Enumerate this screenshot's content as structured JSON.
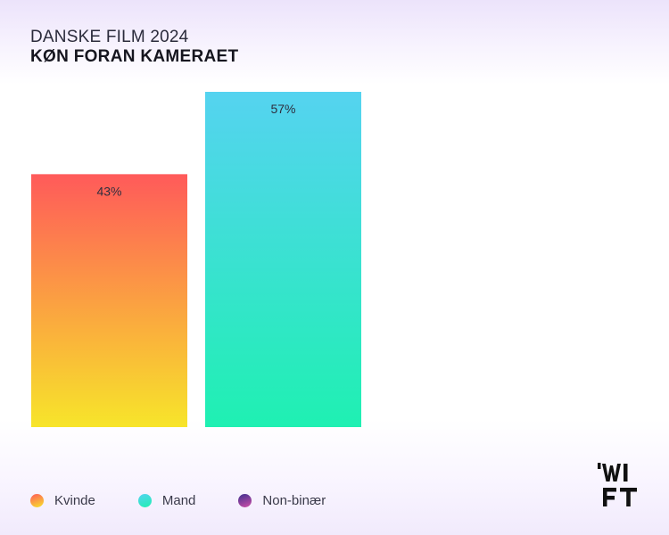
{
  "header": {
    "title": "DANSKE FILM 2024",
    "subtitle": "KØN FORAN KAMERAET"
  },
  "chart_data": {
    "type": "bar",
    "categories": [
      "Kvinde",
      "Mand"
    ],
    "values": [
      43,
      57
    ],
    "data_labels": [
      "43%",
      "57%"
    ],
    "ylim": [
      0,
      57
    ],
    "grid": false,
    "legend_placement": "bottom-left",
    "legend": [
      {
        "name": "Kvinde",
        "colors": [
          "#ff5a5a",
          "#f7e52a"
        ]
      },
      {
        "name": "Mand",
        "colors": [
          "#55d3f0",
          "#1ff0b2"
        ]
      },
      {
        "name": "Non-binær",
        "colors": [
          "#3e2f8f",
          "#d04fa8"
        ]
      }
    ],
    "bar_gradients": [
      [
        "#ff5a5a",
        "#f7e52a"
      ],
      [
        "#55d3f0",
        "#1ff0b2"
      ]
    ]
  },
  "logo": {
    "text": "WIFT"
  }
}
